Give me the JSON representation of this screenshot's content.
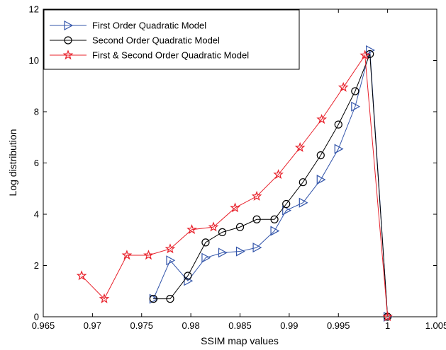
{
  "chart_data": {
    "type": "line",
    "xlabel": "SSIM map values",
    "ylabel": "Log distribution",
    "xlim": [
      0.965,
      1.005
    ],
    "ylim": [
      0,
      12
    ],
    "x_ticks": [
      0.965,
      0.97,
      0.975,
      0.98,
      0.985,
      0.99,
      0.995,
      1,
      1.005
    ],
    "x_tick_labels": [
      "0.965",
      "0.97",
      "0.975",
      "0.98",
      "0.985",
      "0.99",
      "0.995",
      "1",
      "1.005"
    ],
    "y_ticks": [
      0,
      2,
      4,
      6,
      8,
      10,
      12
    ],
    "y_tick_labels": [
      "0",
      "2",
      "4",
      "6",
      "8",
      "10",
      "12"
    ],
    "grid": false,
    "legend_position": "top-left",
    "series": [
      {
        "name": "First Order Quadratic Model",
        "color": "#3355aa",
        "marker": "triangle-right",
        "x": [
          0.9762,
          0.9779,
          0.9797,
          0.9815,
          0.9832,
          0.985,
          0.9867,
          0.9885,
          0.9897,
          0.9914,
          0.9932,
          0.995,
          0.9967,
          0.9982,
          1.0
        ],
        "y": [
          0.7,
          2.2,
          1.4,
          2.3,
          2.5,
          2.55,
          2.7,
          3.35,
          4.15,
          4.45,
          5.35,
          6.55,
          8.2,
          10.4,
          0.0
        ]
      },
      {
        "name": "Second Order Quadratic Model",
        "color": "#000000",
        "marker": "circle",
        "x": [
          0.9762,
          0.9779,
          0.9797,
          0.9815,
          0.9832,
          0.985,
          0.9867,
          0.9885,
          0.9897,
          0.9914,
          0.9932,
          0.995,
          0.9967,
          0.9982,
          1.0
        ],
        "y": [
          0.7,
          0.7,
          1.6,
          2.9,
          3.3,
          3.5,
          3.8,
          3.8,
          4.4,
          5.25,
          6.3,
          7.5,
          8.8,
          10.25,
          0.0
        ]
      },
      {
        "name": "First & Second Order Quadratic Model",
        "color": "#e8202a",
        "marker": "star",
        "x": [
          0.9689,
          0.9712,
          0.9735,
          0.9757,
          0.9779,
          0.9801,
          0.9823,
          0.9845,
          0.9867,
          0.9889,
          0.9911,
          0.9933,
          0.9955,
          0.9977,
          1.0
        ],
        "y": [
          1.6,
          0.7,
          2.4,
          2.4,
          2.65,
          3.4,
          3.5,
          4.25,
          4.7,
          5.55,
          6.6,
          7.7,
          8.95,
          10.2,
          0.0
        ]
      }
    ]
  }
}
